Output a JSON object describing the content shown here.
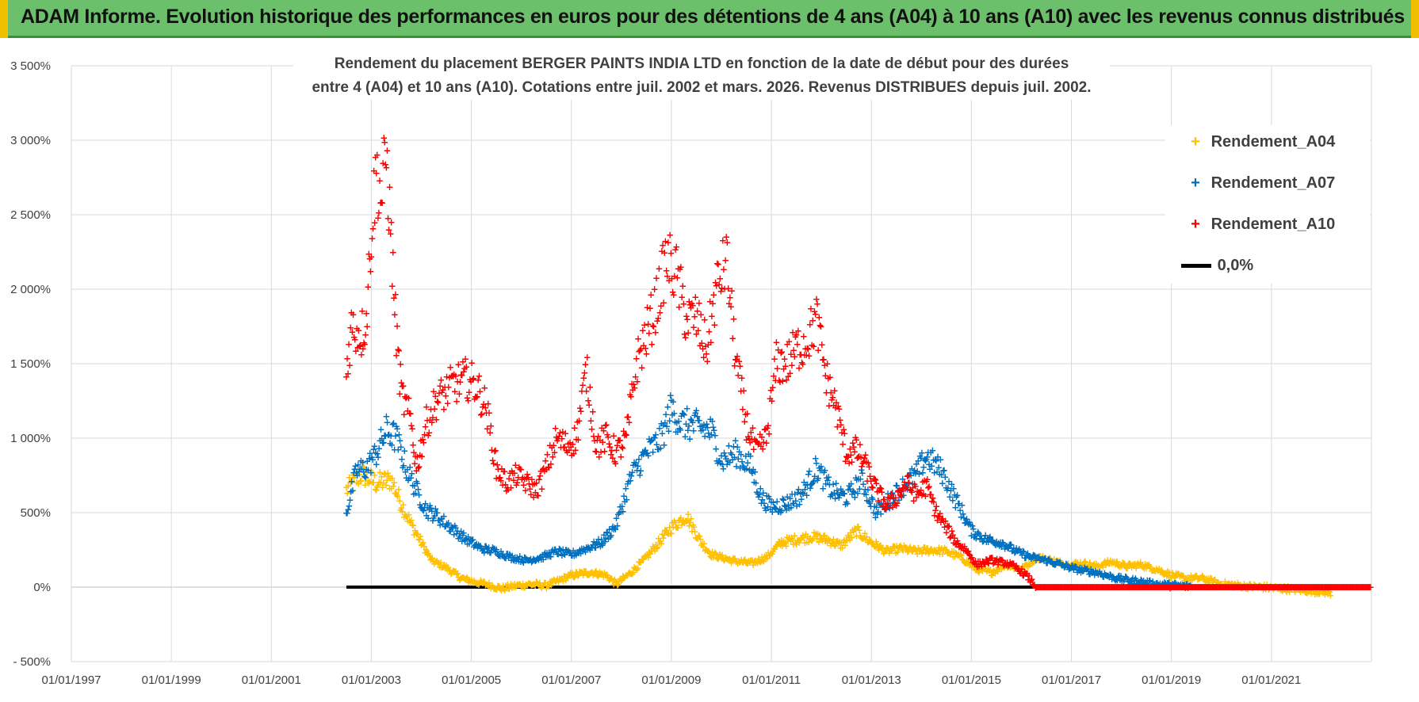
{
  "banner": {
    "title": "ADAM Informe. Evolution historique des performances en euros pour des détentions de 4 ans (A04) à 10 ans (A10) avec les revenus connus distribués"
  },
  "colors": {
    "A04": "#ffc000",
    "A07": "#0070c0",
    "A10": "#ff0000",
    "zero": "#000000",
    "grid": "#d9d9d9",
    "axis_text": "#404040"
  },
  "chart_data": {
    "type": "scatter",
    "title_lines": [
      "Rendement du placement BERGER PAINTS INDIA LTD en fonction de la date de début pour des durées",
      "entre 4 (A04) et 10 ans (A10).  Cotations entre juil. 2002 et mars. 2026. Revenus DISTRIBUES depuis juil. 2002."
    ],
    "xlabel": "",
    "ylabel": "",
    "xlim": [
      1997.0,
      2023.0
    ],
    "ylim": [
      -500,
      3500
    ],
    "y_ticks": [
      -500,
      0,
      500,
      1000,
      1500,
      2000,
      2500,
      3000,
      3500
    ],
    "y_tick_labels": [
      "- 500%",
      "0%",
      "500%",
      "1 000%",
      "1 500%",
      "2 000%",
      "2 500%",
      "3 000%",
      "3 500%"
    ],
    "x_ticks": [
      1997,
      1999,
      2001,
      2003,
      2005,
      2007,
      2009,
      2011,
      2013,
      2015,
      2017,
      2019,
      2021
    ],
    "x_tick_labels": [
      "01/01/1997",
      "01/01/1999",
      "01/01/2001",
      "01/01/2003",
      "01/01/2005",
      "01/01/2007",
      "01/01/2009",
      "01/01/2011",
      "01/01/2013",
      "01/01/2015",
      "01/01/2017",
      "01/01/2019",
      "01/01/2021"
    ],
    "legend_position": "top-right",
    "marker": "+",
    "series": [
      {
        "name": "Rendement_A04",
        "color_key": "A04",
        "points": [
          [
            2002.5,
            650
          ],
          [
            2002.8,
            760
          ],
          [
            2003.1,
            700
          ],
          [
            2003.4,
            720
          ],
          [
            2003.6,
            560
          ],
          [
            2003.8,
            420
          ],
          [
            2004.0,
            300
          ],
          [
            2004.2,
            180
          ],
          [
            2004.5,
            130
          ],
          [
            2004.8,
            60
          ],
          [
            2005.0,
            40
          ],
          [
            2005.3,
            20
          ],
          [
            2005.6,
            -10
          ],
          [
            2005.9,
            10
          ],
          [
            2006.2,
            20
          ],
          [
            2006.5,
            10
          ],
          [
            2006.8,
            50
          ],
          [
            2007.0,
            80
          ],
          [
            2007.4,
            100
          ],
          [
            2007.7,
            80
          ],
          [
            2007.9,
            20
          ],
          [
            2008.2,
            100
          ],
          [
            2008.5,
            200
          ],
          [
            2008.8,
            320
          ],
          [
            2009.0,
            400
          ],
          [
            2009.3,
            480
          ],
          [
            2009.6,
            300
          ],
          [
            2009.8,
            220
          ],
          [
            2010.2,
            180
          ],
          [
            2010.6,
            160
          ],
          [
            2010.9,
            200
          ],
          [
            2011.2,
            300
          ],
          [
            2011.5,
            320
          ],
          [
            2011.8,
            340
          ],
          [
            2012.1,
            320
          ],
          [
            2012.4,
            280
          ],
          [
            2012.7,
            380
          ],
          [
            2013.0,
            300
          ],
          [
            2013.3,
            240
          ],
          [
            2013.6,
            260
          ],
          [
            2013.9,
            240
          ],
          [
            2014.2,
            250
          ],
          [
            2014.5,
            240
          ],
          [
            2014.8,
            200
          ],
          [
            2015.1,
            120
          ],
          [
            2015.4,
            100
          ],
          [
            2015.7,
            150
          ],
          [
            2016.0,
            120
          ],
          [
            2016.3,
            200
          ],
          [
            2016.6,
            180
          ],
          [
            2016.9,
            150
          ],
          [
            2017.2,
            160
          ],
          [
            2017.5,
            140
          ],
          [
            2017.8,
            170
          ],
          [
            2018.1,
            140
          ],
          [
            2018.4,
            150
          ],
          [
            2018.7,
            120
          ],
          [
            2019.0,
            80
          ],
          [
            2019.3,
            60
          ],
          [
            2019.6,
            60
          ],
          [
            2020.0,
            20
          ],
          [
            2020.4,
            10
          ],
          [
            2020.8,
            0
          ],
          [
            2021.2,
            -10
          ],
          [
            2021.6,
            -20
          ],
          [
            2022.0,
            -30
          ],
          [
            2022.2,
            -40
          ]
        ]
      },
      {
        "name": "Rendement_A07",
        "color_key": "A07",
        "points": [
          [
            2002.5,
            500
          ],
          [
            2002.7,
            780
          ],
          [
            2002.9,
            800
          ],
          [
            2003.1,
            900
          ],
          [
            2003.3,
            1050
          ],
          [
            2003.5,
            1000
          ],
          [
            2003.7,
            800
          ],
          [
            2003.9,
            650
          ],
          [
            2004.1,
            520
          ],
          [
            2004.3,
            480
          ],
          [
            2004.6,
            400
          ],
          [
            2004.9,
            320
          ],
          [
            2005.2,
            260
          ],
          [
            2005.5,
            240
          ],
          [
            2005.8,
            200
          ],
          [
            2006.1,
            180
          ],
          [
            2006.4,
            200
          ],
          [
            2006.7,
            240
          ],
          [
            2007.0,
            220
          ],
          [
            2007.3,
            260
          ],
          [
            2007.6,
            300
          ],
          [
            2007.9,
            420
          ],
          [
            2008.2,
            750
          ],
          [
            2008.5,
            900
          ],
          [
            2008.8,
            1000
          ],
          [
            2009.0,
            1200
          ],
          [
            2009.2,
            1100
          ],
          [
            2009.5,
            1080
          ],
          [
            2009.8,
            1050
          ],
          [
            2010.0,
            850
          ],
          [
            2010.3,
            900
          ],
          [
            2010.6,
            800
          ],
          [
            2010.8,
            600
          ],
          [
            2011.0,
            540
          ],
          [
            2011.3,
            560
          ],
          [
            2011.6,
            620
          ],
          [
            2011.9,
            800
          ],
          [
            2012.2,
            650
          ],
          [
            2012.5,
            600
          ],
          [
            2012.8,
            720
          ],
          [
            2013.1,
            500
          ],
          [
            2013.4,
            600
          ],
          [
            2013.7,
            700
          ],
          [
            2013.9,
            760
          ],
          [
            2014.1,
            880
          ],
          [
            2014.4,
            780
          ],
          [
            2014.7,
            580
          ],
          [
            2015.0,
            380
          ],
          [
            2015.3,
            320
          ],
          [
            2015.6,
            300
          ],
          [
            2015.9,
            240
          ],
          [
            2016.2,
            200
          ],
          [
            2016.5,
            180
          ],
          [
            2016.8,
            150
          ],
          [
            2017.1,
            120
          ],
          [
            2017.5,
            100
          ],
          [
            2017.9,
            60
          ],
          [
            2018.3,
            40
          ],
          [
            2018.7,
            20
          ],
          [
            2019.1,
            10
          ],
          [
            2019.4,
            5
          ]
        ]
      },
      {
        "name": "Rendement_A10",
        "color_key": "A10",
        "points": [
          [
            2002.5,
            1450
          ],
          [
            2002.6,
            1750
          ],
          [
            2002.8,
            1700
          ],
          [
            2002.9,
            1800
          ],
          [
            2003.0,
            2400
          ],
          [
            2003.1,
            2800
          ],
          [
            2003.2,
            2600
          ],
          [
            2003.3,
            2900
          ],
          [
            2003.4,
            2300
          ],
          [
            2003.5,
            1700
          ],
          [
            2003.6,
            1300
          ],
          [
            2003.8,
            1100
          ],
          [
            2003.9,
            800
          ],
          [
            2004.1,
            1100
          ],
          [
            2004.3,
            1250
          ],
          [
            2004.6,
            1350
          ],
          [
            2004.9,
            1400
          ],
          [
            2005.1,
            1350
          ],
          [
            2005.3,
            1200
          ],
          [
            2005.5,
            800
          ],
          [
            2005.7,
            700
          ],
          [
            2005.9,
            750
          ],
          [
            2006.1,
            700
          ],
          [
            2006.3,
            650
          ],
          [
            2006.5,
            800
          ],
          [
            2006.7,
            1000
          ],
          [
            2006.9,
            950
          ],
          [
            2007.1,
            1000
          ],
          [
            2007.3,
            1450
          ],
          [
            2007.5,
            950
          ],
          [
            2007.7,
            1000
          ],
          [
            2007.9,
            900
          ],
          [
            2008.1,
            1000
          ],
          [
            2008.3,
            1500
          ],
          [
            2008.5,
            1700
          ],
          [
            2008.7,
            1900
          ],
          [
            2008.9,
            2200
          ],
          [
            2009.1,
            2100
          ],
          [
            2009.3,
            1800
          ],
          [
            2009.5,
            1800
          ],
          [
            2009.7,
            1600
          ],
          [
            2009.9,
            2000
          ],
          [
            2010.1,
            2200
          ],
          [
            2010.3,
            1500
          ],
          [
            2010.5,
            1100
          ],
          [
            2010.7,
            900
          ],
          [
            2010.9,
            1000
          ],
          [
            2011.1,
            1500
          ],
          [
            2011.3,
            1500
          ],
          [
            2011.5,
            1600
          ],
          [
            2011.7,
            1650
          ],
          [
            2011.9,
            1800
          ],
          [
            2012.1,
            1400
          ],
          [
            2012.3,
            1200
          ],
          [
            2012.5,
            900
          ],
          [
            2012.7,
            920
          ],
          [
            2012.9,
            800
          ],
          [
            2013.1,
            650
          ],
          [
            2013.3,
            550
          ],
          [
            2013.5,
            600
          ],
          [
            2013.7,
            700
          ],
          [
            2013.9,
            620
          ],
          [
            2014.1,
            680
          ],
          [
            2014.3,
            500
          ],
          [
            2014.5,
            400
          ],
          [
            2014.7,
            300
          ],
          [
            2014.9,
            250
          ],
          [
            2015.1,
            150
          ],
          [
            2015.4,
            180
          ],
          [
            2015.7,
            160
          ],
          [
            2015.9,
            130
          ],
          [
            2016.1,
            80
          ],
          [
            2016.3,
            0
          ],
          [
            2017.0,
            0
          ],
          [
            2018.0,
            0
          ],
          [
            2019.0,
            0
          ],
          [
            2020.0,
            0
          ],
          [
            2021.0,
            0
          ],
          [
            2022.0,
            0
          ],
          [
            2023.0,
            0
          ]
        ]
      },
      {
        "name": "0,0%",
        "color_key": "zero",
        "kind": "line",
        "points": [
          [
            2002.5,
            0
          ],
          [
            2016.3,
            0
          ]
        ]
      }
    ]
  }
}
